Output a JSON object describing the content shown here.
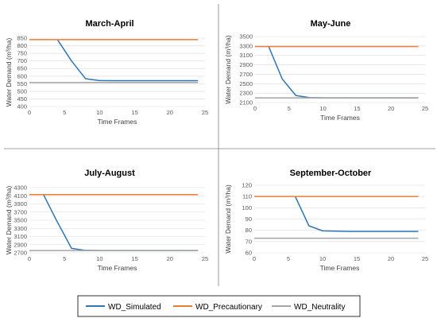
{
  "colors": {
    "simulated": "#2E75B6",
    "precautionary": "#ED7D31",
    "neutrality": "#A5A5A5",
    "grid": "#D9D9D9",
    "divider": "#808080"
  },
  "legend": {
    "entries": [
      "WD_Simulated",
      "WD_Precautionary",
      "WD_Neutrality"
    ]
  },
  "chart_data": [
    {
      "type": "line",
      "title": "March-April",
      "xlabel": "Time Frames",
      "ylabel": "Water Demand (m³/ha)",
      "xlim": [
        0,
        25
      ],
      "xticks": [
        0,
        5,
        10,
        15,
        20,
        25
      ],
      "ylim": [
        400,
        850
      ],
      "yticks": [
        400,
        450,
        500,
        550,
        600,
        650,
        700,
        750,
        800,
        850
      ],
      "grid": true,
      "series": [
        {
          "name": "WD_Simulated",
          "x": [
            4,
            6,
            8,
            10,
            12,
            14,
            16,
            18,
            20,
            22,
            24
          ],
          "y": [
            840,
            700,
            583,
            571,
            570,
            570,
            570,
            570,
            570,
            570,
            570
          ]
        },
        {
          "name": "WD_Precautionary",
          "x": [
            0,
            24
          ],
          "y": [
            840,
            840
          ]
        },
        {
          "name": "WD_Neutrality",
          "x": [
            0,
            24
          ],
          "y": [
            558,
            558
          ]
        }
      ]
    },
    {
      "type": "line",
      "title": "May-June",
      "xlabel": "Time Frames",
      "ylabel": "Water Demand (m³/ha)",
      "xlim": [
        0,
        25
      ],
      "xticks": [
        0,
        5,
        10,
        15,
        20,
        25
      ],
      "ylim": [
        2100,
        3500
      ],
      "yticks": [
        2100,
        2300,
        2500,
        2700,
        2900,
        3100,
        3300,
        3500
      ],
      "grid": true,
      "series": [
        {
          "name": "WD_Simulated",
          "x": [
            2,
            4,
            6,
            8,
            10,
            12,
            14,
            16,
            18,
            20,
            22,
            24
          ],
          "y": [
            3290,
            2600,
            2250,
            2205,
            2200,
            2200,
            2200,
            2200,
            2200,
            2200,
            2200,
            2200
          ]
        },
        {
          "name": "WD_Precautionary",
          "x": [
            0,
            24
          ],
          "y": [
            3290,
            3290
          ]
        },
        {
          "name": "WD_Neutrality",
          "x": [
            0,
            24
          ],
          "y": [
            2200,
            2200
          ]
        }
      ]
    },
    {
      "type": "line",
      "title": "July-August",
      "xlabel": "Time Frames",
      "ylabel": "Water Demand (m³/ha)",
      "xlim": [
        0,
        25
      ],
      "xticks": [
        0,
        5,
        10,
        15,
        20,
        25
      ],
      "ylim": [
        2700,
        4300
      ],
      "yticks": [
        2700,
        2900,
        3100,
        3300,
        3500,
        3700,
        3900,
        4100,
        4300
      ],
      "grid": true,
      "series": [
        {
          "name": "WD_Simulated",
          "x": [
            2,
            4,
            6,
            8,
            10,
            12,
            14,
            16,
            18,
            20,
            22,
            24
          ],
          "y": [
            4130,
            3450,
            2810,
            2760,
            2755,
            2755,
            2755,
            2755,
            2755,
            2755,
            2755,
            2755
          ]
        },
        {
          "name": "WD_Precautionary",
          "x": [
            0,
            24
          ],
          "y": [
            4130,
            4130
          ]
        },
        {
          "name": "WD_Neutrality",
          "x": [
            0,
            24
          ],
          "y": [
            2755,
            2755
          ]
        }
      ]
    },
    {
      "type": "line",
      "title": "September-October",
      "xlabel": "Time Frames",
      "ylabel": "Water Demand (m³/ha)",
      "xlim": [
        0,
        25
      ],
      "xticks": [
        0,
        5,
        10,
        15,
        20,
        25
      ],
      "ylim": [
        60,
        120
      ],
      "yticks": [
        60,
        70,
        80,
        90,
        100,
        110,
        120
      ],
      "grid": true,
      "series": [
        {
          "name": "WD_Simulated",
          "x": [
            6,
            8,
            10,
            12,
            14,
            16,
            18,
            20,
            22,
            24
          ],
          "y": [
            110,
            84,
            79.5,
            79.2,
            79,
            79,
            79,
            79,
            79,
            79
          ]
        },
        {
          "name": "WD_Precautionary",
          "x": [
            0,
            24
          ],
          "y": [
            110,
            110
          ]
        },
        {
          "name": "WD_Neutrality",
          "x": [
            0,
            24
          ],
          "y": [
            73,
            73
          ]
        }
      ]
    }
  ]
}
